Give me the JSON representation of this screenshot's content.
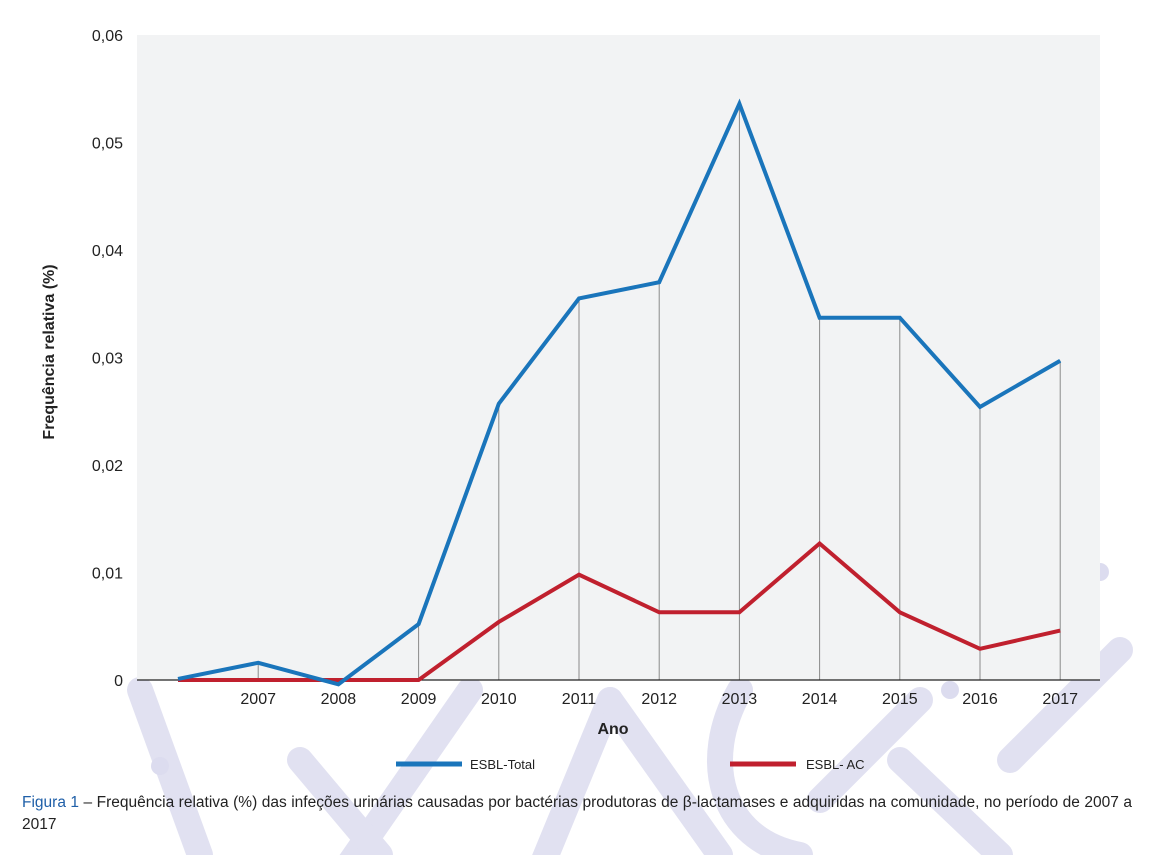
{
  "chart_data": {
    "type": "line",
    "title": "",
    "xlabel": "Ano",
    "ylabel": "Frequência relativa (%)",
    "categories": [
      "",
      "2007",
      "2008",
      "2009",
      "2010",
      "2011",
      "2012",
      "2013",
      "2014",
      "2015",
      "2016",
      "2017"
    ],
    "y_ticks": [
      0,
      0.01,
      0.02,
      0.03,
      0.04,
      0.05,
      0.06
    ],
    "y_tick_labels": [
      "0",
      "0,01",
      "0,02",
      "0,03",
      "0,04",
      "0,05",
      "0,06"
    ],
    "ylim": [
      0,
      0.06
    ],
    "grid": "vertical lines at category points",
    "legend_position": "bottom",
    "series": [
      {
        "name": "ESBL-Total",
        "color": "#1a75bb",
        "values": [
          0.0001,
          0.0016,
          -0.0004,
          0.0052,
          0.0257,
          0.0355,
          0.037,
          0.0536,
          0.0337,
          0.0337,
          0.0254,
          0.0297
        ]
      },
      {
        "name": "ESBL- AC",
        "color": "#c0202e",
        "values": [
          0,
          0,
          0,
          0,
          0.0054,
          0.0098,
          0.0063,
          0.0063,
          0.0127,
          0.0063,
          0.0029,
          0.0046
        ]
      }
    ]
  },
  "caption": {
    "label": "Figura 1",
    "text": " – Frequência relativa (%) das infeções urinárias causadas por bactérias produtoras de β-lactamases e adquiridas na comunidade, no período de 2007 a 2017"
  },
  "colors": {
    "plot_background": "#f2f3f4",
    "gridline": "#8a8a8a",
    "caption_label": "#1f5fa8",
    "watermark": "#dcdcef"
  }
}
